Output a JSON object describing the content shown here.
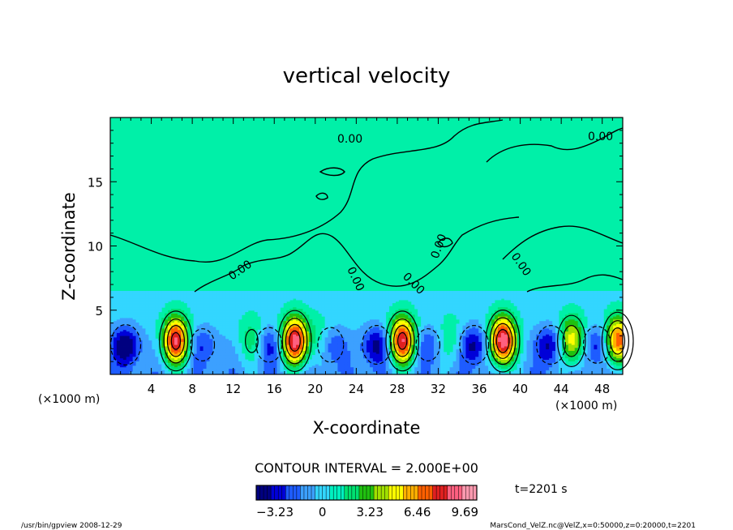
{
  "chart_data": {
    "type": "heatmap",
    "title": "vertical velocity",
    "xlabel": "X-coordinate",
    "ylabel": "Z-coordinate",
    "x_unit": "(×1000 m)",
    "y_unit": "(×1000 m)",
    "xlim": [
      0,
      50
    ],
    "ylim": [
      0,
      20
    ],
    "x_ticks": [
      4,
      8,
      12,
      16,
      20,
      24,
      28,
      32,
      36,
      40,
      44,
      48
    ],
    "y_ticks": [
      5,
      10,
      15
    ],
    "contour_interval_text": "CONTOUR INTERVAL = 2.000E+00",
    "contour_label": "0.00",
    "colorbar": {
      "range": [
        -4.5,
        10.5
      ],
      "ticks": [
        -3.23,
        0,
        3.23,
        6.46,
        9.69
      ],
      "tick_labels": [
        "−3.23",
        "0",
        "3.23",
        "6.46",
        "9.69"
      ],
      "colors": [
        "#000080",
        "#0000d8",
        "#1e5cff",
        "#3ca0ff",
        "#33d6ff",
        "#00f0c0",
        "#00e070",
        "#20c010",
        "#a0e000",
        "#ffff00",
        "#ffb000",
        "#ff6000",
        "#e02020",
        "#ff6080",
        "#ff9ab0"
      ]
    },
    "time_label": "t=2201 s",
    "updrafts": [
      {
        "x": 6.4,
        "w_max": 9.0
      },
      {
        "x": 18.0,
        "w_max": 9.5
      },
      {
        "x": 28.5,
        "w_max": 9.0
      },
      {
        "x": 38.3,
        "w_max": 10.0
      },
      {
        "x": 49.5,
        "w_max": 8.0
      },
      {
        "x": 45.0,
        "w_max": 6.0
      },
      {
        "x": 13.8,
        "w_max": 2.5
      },
      {
        "x": 20.5,
        "w_max": 2.0
      },
      {
        "x": 33.2,
        "w_max": 2.0
      }
    ],
    "downdrafts": [
      {
        "x": 1.5,
        "w_min": -4.0
      },
      {
        "x": 9.0,
        "w_min": -2.0
      },
      {
        "x": 15.5,
        "w_min": -2.5
      },
      {
        "x": 21.5,
        "w_min": -2.5
      },
      {
        "x": 26.0,
        "w_min": -3.5
      },
      {
        "x": 31.0,
        "w_min": -2.0
      },
      {
        "x": 35.5,
        "w_min": -3.5
      },
      {
        "x": 43.0,
        "w_min": -3.5
      },
      {
        "x": 47.5,
        "w_min": -3.0
      }
    ]
  },
  "footer": {
    "left": "/usr/bin/gpview   2008-12-29",
    "right": "MarsCond_VelZ.nc@VelZ,x=0:50000,z=0:20000,t=2201"
  }
}
